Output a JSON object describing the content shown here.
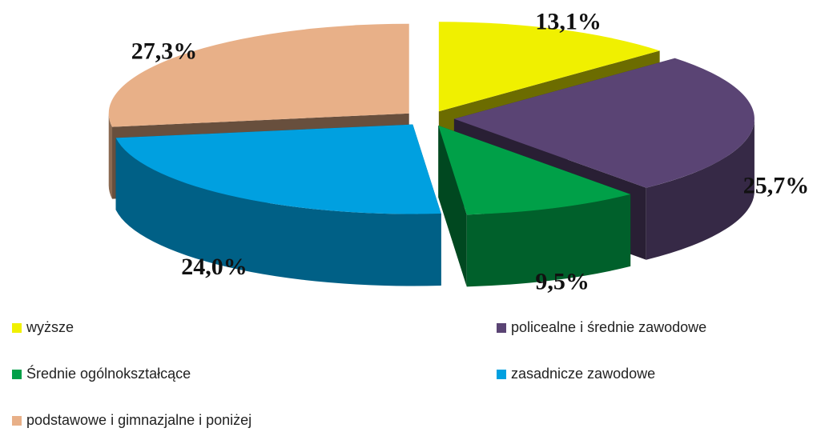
{
  "chart_data": {
    "type": "pie3d",
    "categories": [
      "wyższe",
      "policealne i średnie zawodowe",
      "Średnie ogólnokształcące",
      "zasadnicze zawodowe",
      "podstawowe i gimnazjalne i poniżej"
    ],
    "values": [
      13.1,
      25.7,
      9.5,
      24.0,
      27.3
    ],
    "value_labels": [
      "13,1%",
      "25,7%",
      "9,5%",
      "24,0%",
      "27,3%"
    ],
    "colors": [
      "#f0f000",
      "#5a4474",
      "#00a048",
      "#00a0e0",
      "#e8b088"
    ],
    "legend": "bottom"
  }
}
